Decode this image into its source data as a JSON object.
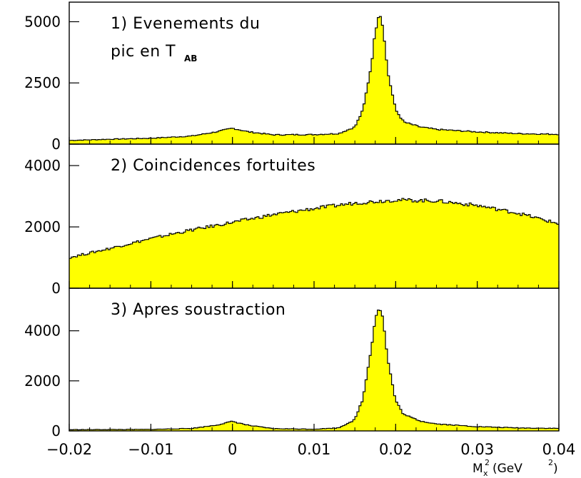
{
  "chart_data": {
    "type": "area",
    "shared_x": {
      "xlim": [
        -0.02,
        0.04
      ],
      "ticks": [
        "-0.02",
        "-0.01",
        "0",
        "0.01",
        "0.02",
        "0.03",
        "0.04"
      ],
      "label_main": "M",
      "label_sub": "x",
      "label_sup": "2",
      "label_unit_open": " (GeV",
      "label_unit_sup": "2",
      "label_unit_close": ")"
    },
    "fill_color": "#ffff00",
    "line_color": "#000000",
    "panels": [
      {
        "title_line1": "1) Evenements du",
        "title_line2": "pic en T",
        "title_sub": "AB",
        "ylim": [
          0,
          5800
        ],
        "yticks": [
          "0",
          "2500",
          "5000"
        ],
        "ytick_values": [
          0,
          2500,
          5000
        ],
        "x": [
          -0.02,
          -0.015,
          -0.01,
          -0.005,
          -0.002,
          0.0,
          0.002,
          0.005,
          0.01,
          0.013,
          0.015,
          0.016,
          0.017,
          0.0175,
          0.018,
          0.0185,
          0.019,
          0.02,
          0.021,
          0.023,
          0.025,
          0.03,
          0.035,
          0.04
        ],
        "values": [
          150,
          200,
          240,
          330,
          500,
          650,
          500,
          380,
          390,
          430,
          700,
          1400,
          3200,
          4600,
          5450,
          4700,
          3000,
          1400,
          900,
          700,
          600,
          500,
          430,
          400
        ]
      },
      {
        "title_line1": "2) Coincidences fortuites",
        "ylim": [
          0,
          4700
        ],
        "yticks": [
          "0",
          "2000",
          "4000"
        ],
        "ytick_values": [
          0,
          2000,
          4000
        ],
        "x": [
          -0.02,
          -0.015,
          -0.01,
          -0.005,
          0.0,
          0.005,
          0.01,
          0.015,
          0.02,
          0.025,
          0.03,
          0.035,
          0.04
        ],
        "values": [
          1000,
          1300,
          1620,
          1900,
          2150,
          2400,
          2600,
          2780,
          2880,
          2850,
          2700,
          2450,
          2100
        ]
      },
      {
        "title_line1": "3) Apres soustraction",
        "ylim": [
          0,
          5700
        ],
        "yticks": [
          "0",
          "2000",
          "4000"
        ],
        "ytick_values": [
          0,
          2000,
          4000
        ],
        "x": [
          -0.02,
          -0.015,
          -0.01,
          -0.005,
          -0.002,
          0.0,
          0.002,
          0.005,
          0.01,
          0.013,
          0.015,
          0.016,
          0.017,
          0.0175,
          0.018,
          0.0185,
          0.019,
          0.02,
          0.021,
          0.023,
          0.025,
          0.03,
          0.035,
          0.04
        ],
        "values": [
          50,
          55,
          60,
          100,
          230,
          380,
          220,
          90,
          70,
          120,
          450,
          1300,
          3300,
          4500,
          5000,
          4400,
          2900,
          1200,
          650,
          400,
          280,
          170,
          120,
          100
        ]
      }
    ]
  }
}
